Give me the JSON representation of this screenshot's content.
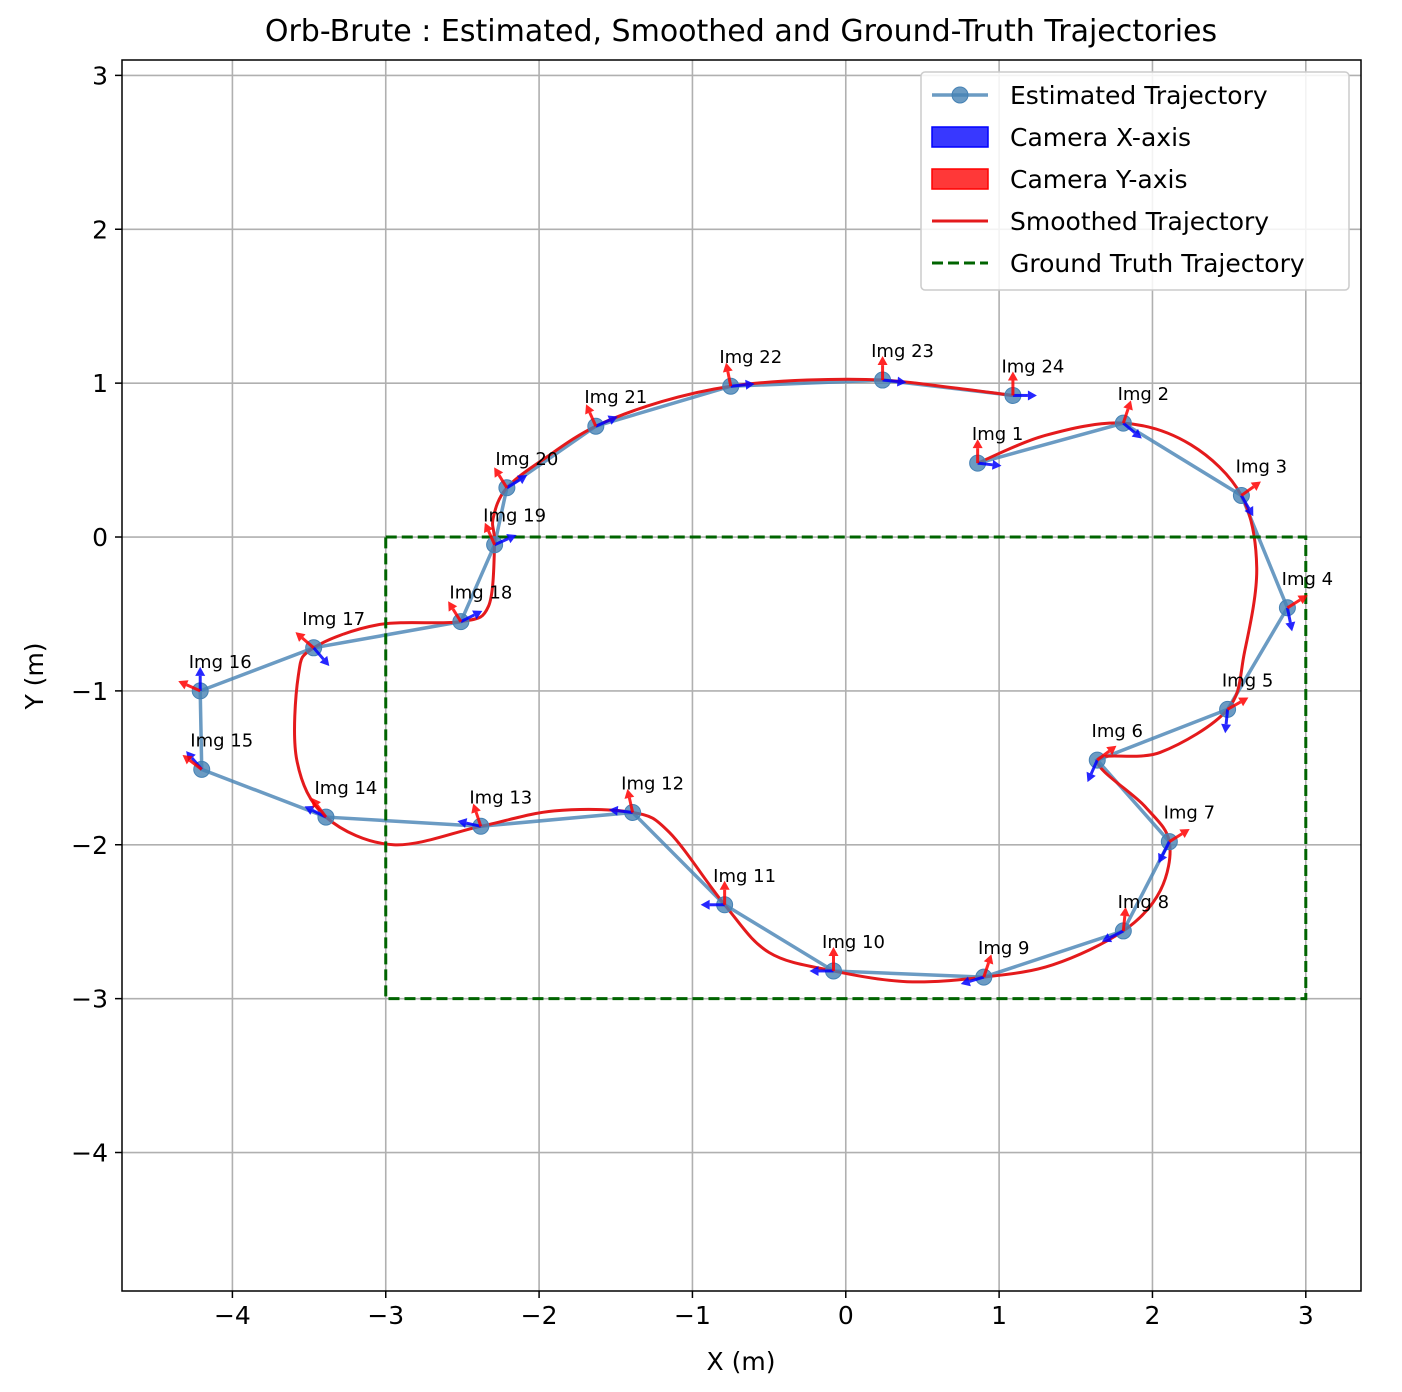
{
  "chart_data": {
    "type": "line",
    "title": "Orb-Brute : Estimated, Smoothed and Ground-Truth Trajectories",
    "xlabel": "X (m)",
    "ylabel": "Y (m)",
    "xlim": [
      -4.72,
      3.36
    ],
    "ylim": [
      -4.9,
      3.1
    ],
    "xticks": [
      -4,
      -3,
      -2,
      -1,
      0,
      1,
      2,
      3
    ],
    "yticks": [
      -4,
      -3,
      -2,
      -1,
      0,
      1,
      2,
      3
    ],
    "xtick_labels": [
      "−4",
      "−3",
      "−2",
      "−1",
      "0",
      "1",
      "2",
      "3"
    ],
    "ytick_labels": [
      "−4",
      "−3",
      "−2",
      "−1",
      "0",
      "1",
      "2",
      "3"
    ],
    "grid": true,
    "legend_position": "top-right",
    "legend": [
      {
        "label": "Estimated Trajectory",
        "kind": "line-marker",
        "color": "#4682b4"
      },
      {
        "label": "Camera X-axis",
        "kind": "patch",
        "color": "#0000ff"
      },
      {
        "label": "Camera Y-axis",
        "kind": "patch",
        "color": "#ff0000"
      },
      {
        "label": "Smoothed Trajectory",
        "kind": "line",
        "color": "#e41a1c"
      },
      {
        "label": "Ground Truth Trajectory",
        "kind": "dashed",
        "color": "#006400"
      }
    ],
    "series": [
      {
        "name": "Estimated Trajectory",
        "color": "#4682b4",
        "points": [
          {
            "label": "Img 1",
            "x": 0.86,
            "y": 0.48,
            "xdir": [
              0.9,
              -0.1
            ],
            "ydir": [
              0.0,
              1.0
            ]
          },
          {
            "label": "Img 2",
            "x": 1.81,
            "y": 0.74,
            "xdir": [
              0.6,
              -0.5
            ],
            "ydir": [
              0.3,
              0.9
            ]
          },
          {
            "label": "Img 3",
            "x": 2.58,
            "y": 0.27,
            "xdir": [
              0.4,
              -0.7
            ],
            "ydir": [
              0.7,
              0.5
            ]
          },
          {
            "label": "Img 4",
            "x": 2.88,
            "y": -0.46,
            "xdir": [
              0.2,
              -1.0
            ],
            "ydir": [
              0.8,
              0.5
            ]
          },
          {
            "label": "Img 5",
            "x": 2.49,
            "y": -1.12,
            "xdir": [
              -0.1,
              -1.0
            ],
            "ydir": [
              0.7,
              0.4
            ]
          },
          {
            "label": "Img 6",
            "x": 1.64,
            "y": -1.45,
            "xdir": [
              -0.4,
              -0.9
            ],
            "ydir": [
              0.8,
              0.6
            ]
          },
          {
            "label": "Img 7",
            "x": 2.11,
            "y": -1.98,
            "xdir": [
              -0.4,
              -0.8
            ],
            "ydir": [
              0.8,
              0.5
            ]
          },
          {
            "label": "Img 8",
            "x": 1.81,
            "y": -2.56,
            "xdir": [
              -0.8,
              -0.4
            ],
            "ydir": [
              0.1,
              1.0
            ]
          },
          {
            "label": "Img 9",
            "x": 0.9,
            "y": -2.86,
            "xdir": [
              -1.0,
              -0.3
            ],
            "ydir": [
              0.3,
              0.9
            ]
          },
          {
            "label": "Img 10",
            "x": -0.08,
            "y": -2.82,
            "xdir": [
              -1.0,
              0.0
            ],
            "ydir": [
              0.0,
              1.0
            ]
          },
          {
            "label": "Img 11",
            "x": -0.79,
            "y": -2.39,
            "xdir": [
              -1.0,
              0.0
            ],
            "ydir": [
              0.0,
              1.0
            ]
          },
          {
            "label": "Img 12",
            "x": -1.39,
            "y": -1.79,
            "xdir": [
              -0.9,
              0.1
            ],
            "ydir": [
              -0.2,
              0.9
            ]
          },
          {
            "label": "Img 13",
            "x": -2.38,
            "y": -1.88,
            "xdir": [
              -0.9,
              0.2
            ],
            "ydir": [
              -0.3,
              0.9
            ]
          },
          {
            "label": "Img 14",
            "x": -3.39,
            "y": -1.82,
            "xdir": [
              -0.8,
              0.4
            ],
            "ydir": [
              -0.6,
              0.8
            ]
          },
          {
            "label": "Img 15",
            "x": -4.2,
            "y": -1.51,
            "xdir": [
              -0.6,
              0.7
            ],
            "ydir": [
              -0.8,
              0.6
            ]
          },
          {
            "label": "Img 16",
            "x": -4.21,
            "y": -1.0,
            "xdir": [
              0.0,
              1.0
            ],
            "ydir": [
              -0.9,
              0.4
            ]
          },
          {
            "label": "Img 17",
            "x": -3.47,
            "y": -0.72,
            "xdir": [
              0.6,
              -0.7
            ],
            "ydir": [
              -0.7,
              0.6
            ]
          },
          {
            "label": "Img 18",
            "x": -2.51,
            "y": -0.55,
            "xdir": [
              0.8,
              0.4
            ],
            "ydir": [
              -0.5,
              0.8
            ]
          },
          {
            "label": "Img 19",
            "x": -2.29,
            "y": -0.05,
            "xdir": [
              0.9,
              0.4
            ],
            "ydir": [
              -0.4,
              0.9
            ]
          },
          {
            "label": "Img 20",
            "x": -2.21,
            "y": 0.32,
            "xdir": [
              0.8,
              0.5
            ],
            "ydir": [
              -0.5,
              0.8
            ]
          },
          {
            "label": "Img 21",
            "x": -1.63,
            "y": 0.72,
            "xdir": [
              0.9,
              0.4
            ],
            "ydir": [
              -0.4,
              0.9
            ]
          },
          {
            "label": "Img 22",
            "x": -0.75,
            "y": 0.98,
            "xdir": [
              1.0,
              0.1
            ],
            "ydir": [
              -0.2,
              1.0
            ]
          },
          {
            "label": "Img 23",
            "x": 0.24,
            "y": 1.02,
            "xdir": [
              1.0,
              -0.1
            ],
            "ydir": [
              0.0,
              1.0
            ]
          },
          {
            "label": "Img 24",
            "x": 1.09,
            "y": 0.92,
            "xdir": [
              1.0,
              0.0
            ],
            "ydir": [
              0.0,
              1.0
            ]
          }
        ]
      },
      {
        "name": "Smoothed Trajectory",
        "color": "#e41a1c",
        "points": [
          [
            0.86,
            0.48
          ],
          [
            1.3,
            0.66
          ],
          [
            1.81,
            0.74
          ],
          [
            2.25,
            0.6
          ],
          [
            2.58,
            0.27
          ],
          [
            2.68,
            -0.2
          ],
          [
            2.6,
            -0.75
          ],
          [
            2.49,
            -1.12
          ],
          [
            2.05,
            -1.4
          ],
          [
            1.64,
            -1.45
          ],
          [
            1.95,
            -1.75
          ],
          [
            2.11,
            -1.98
          ],
          [
            2.05,
            -2.3
          ],
          [
            1.81,
            -2.56
          ],
          [
            1.35,
            -2.78
          ],
          [
            0.9,
            -2.86
          ],
          [
            0.4,
            -2.89
          ],
          [
            -0.08,
            -2.82
          ],
          [
            -0.5,
            -2.7
          ],
          [
            -0.79,
            -2.39
          ],
          [
            -1.15,
            -1.92
          ],
          [
            -1.39,
            -1.79
          ],
          [
            -1.9,
            -1.78
          ],
          [
            -2.38,
            -1.88
          ],
          [
            -2.95,
            -2.0
          ],
          [
            -3.39,
            -1.82
          ],
          [
            -3.58,
            -1.45
          ],
          [
            -3.57,
            -0.9
          ],
          [
            -3.47,
            -0.72
          ],
          [
            -3.05,
            -0.57
          ],
          [
            -2.51,
            -0.55
          ],
          [
            -2.33,
            -0.45
          ],
          [
            -2.29,
            -0.05
          ],
          [
            -2.3,
            0.12
          ],
          [
            -2.21,
            0.32
          ],
          [
            -1.95,
            0.52
          ],
          [
            -1.63,
            0.72
          ],
          [
            -1.2,
            0.88
          ],
          [
            -0.75,
            0.98
          ],
          [
            -0.25,
            1.02
          ],
          [
            0.24,
            1.02
          ],
          [
            0.7,
            0.97
          ],
          [
            1.09,
            0.92
          ]
        ]
      },
      {
        "name": "Ground Truth Trajectory",
        "color": "#006400",
        "points": [
          [
            -3,
            0
          ],
          [
            3,
            0
          ],
          [
            3,
            -3
          ],
          [
            -3,
            -3
          ],
          [
            -3,
            0
          ]
        ]
      }
    ]
  }
}
